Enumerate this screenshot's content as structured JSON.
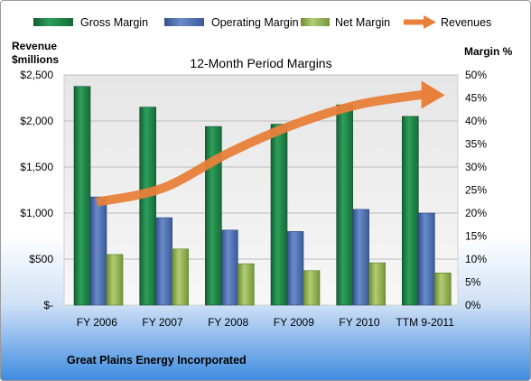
{
  "legend": {
    "items": [
      {
        "label": "Gross Margin",
        "icon": "green-bar-swatch-icon"
      },
      {
        "label": "Operating Margin",
        "icon": "blue-bar-swatch-icon"
      },
      {
        "label": "Net Margin",
        "icon": "olive-bar-swatch-icon"
      },
      {
        "label": "Revenues",
        "icon": "orange-arrow-icon"
      }
    ]
  },
  "colors": {
    "gross": "#1f8a4a",
    "operating": "#4f73b3",
    "net": "#93b152",
    "revenues": "#e8803a"
  },
  "company": "Great Plains Energy Incorporated",
  "chart_data": {
    "type": "bar",
    "title": "12-Month Period Margins",
    "ylabel_left": [
      "Revenue",
      "$millions"
    ],
    "ylabel_right": "Margin %",
    "categories": [
      "FY 2006",
      "FY 2007",
      "FY 2008",
      "FY 2009",
      "FY 2010",
      "TTM 9-2011"
    ],
    "left_ticks": [
      "$-",
      "$500",
      "$1,000",
      "$1,500",
      "$2,000",
      "$2,500"
    ],
    "right_ticks": [
      "0%",
      "5%",
      "10%",
      "15%",
      "20%",
      "25%",
      "30%",
      "35%",
      "40%",
      "45%",
      "50%"
    ],
    "ylim_left": [
      0,
      2500
    ],
    "ylim_right": [
      0,
      50
    ],
    "series": [
      {
        "name": "Gross Margin",
        "axis": "right",
        "values": [
          47.5,
          43,
          38.8,
          39.3,
          43.5,
          41
        ]
      },
      {
        "name": "Operating Margin",
        "axis": "right",
        "values": [
          23.5,
          19,
          16.3,
          16,
          20.8,
          20
        ]
      },
      {
        "name": "Net Margin",
        "axis": "right",
        "values": [
          11,
          12.2,
          9,
          7.5,
          9.2,
          7
        ]
      },
      {
        "name": "Revenues",
        "axis": "left",
        "type": "line",
        "values": [
          1120,
          1270,
          1650,
          1960,
          2180,
          2290
        ]
      }
    ],
    "grid": true,
    "legend_position": "top"
  }
}
